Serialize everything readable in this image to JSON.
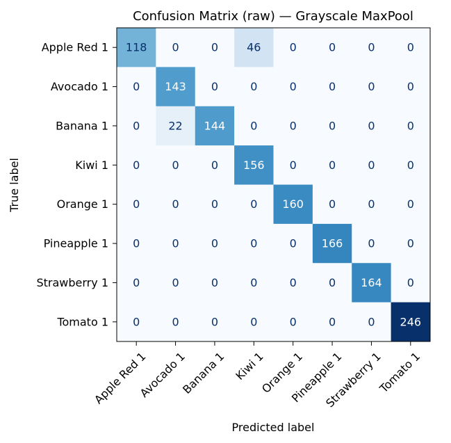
{
  "chart_data": {
    "type": "heatmap",
    "title": "Confusion Matrix (raw) — Grayscale MaxPool",
    "xlabel": "Predicted label",
    "ylabel": "True label",
    "colormap": "Blues",
    "value_range": [
      0,
      246
    ],
    "colorbar": false,
    "x_categories": [
      "Apple Red 1",
      "Avocado 1",
      "Banana 1",
      "Kiwi 1",
      "Orange 1",
      "Pineapple 1",
      "Strawberry 1",
      "Tomato 1"
    ],
    "y_categories": [
      "Apple Red 1",
      "Avocado 1",
      "Banana 1",
      "Kiwi 1",
      "Orange 1",
      "Pineapple 1",
      "Strawberry 1",
      "Tomato 1"
    ],
    "matrix": [
      [
        118,
        0,
        0,
        46,
        0,
        0,
        0,
        0
      ],
      [
        0,
        143,
        0,
        0,
        0,
        0,
        0,
        0
      ],
      [
        0,
        22,
        144,
        0,
        0,
        0,
        0,
        0
      ],
      [
        0,
        0,
        0,
        156,
        0,
        0,
        0,
        0
      ],
      [
        0,
        0,
        0,
        0,
        160,
        0,
        0,
        0
      ],
      [
        0,
        0,
        0,
        0,
        0,
        166,
        0,
        0
      ],
      [
        0,
        0,
        0,
        0,
        0,
        0,
        164,
        0
      ],
      [
        0,
        0,
        0,
        0,
        0,
        0,
        0,
        246
      ]
    ]
  }
}
